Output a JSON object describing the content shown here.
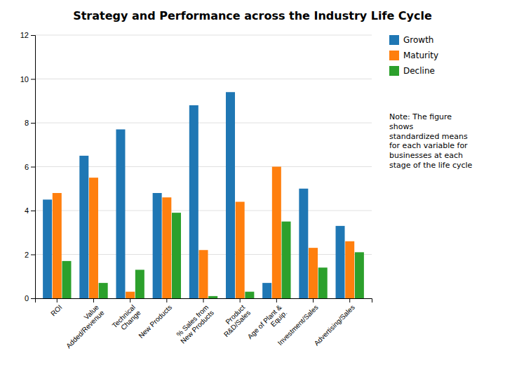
{
  "chart_data": {
    "type": "bar",
    "title": "Strategy and Performance across the Industry Life Cycle",
    "categories": [
      "ROI",
      "Value\nAdded/Revenue",
      "Technical\nChange",
      "New Products",
      "% Sales from\nNew Products",
      "Product\nR&D/Sales",
      "Age of Plant &\nEquip.",
      "Investment/Sales",
      "Advertising/Sales"
    ],
    "series": [
      {
        "name": "Growth",
        "values": [
          4.5,
          6.5,
          7.7,
          4.8,
          8.8,
          9.4,
          0.7,
          5.0,
          3.3
        ]
      },
      {
        "name": "Maturity",
        "values": [
          4.8,
          5.5,
          0.3,
          4.6,
          2.2,
          4.4,
          6.0,
          2.3,
          2.6
        ]
      },
      {
        "name": "Decline",
        "values": [
          1.7,
          0.7,
          1.3,
          3.9,
          0.1,
          0.3,
          3.5,
          1.4,
          2.1
        ]
      }
    ],
    "ylim": [
      0,
      12
    ],
    "yticks": [
      0,
      2,
      4,
      6,
      8,
      10,
      12
    ],
    "grid": true,
    "legend": "upper right",
    "annotations": [
      "Note: The figure\nshows\nstandardized means\nfor each variable for\nbusinesses at each\nstage of the life cycle"
    ]
  }
}
